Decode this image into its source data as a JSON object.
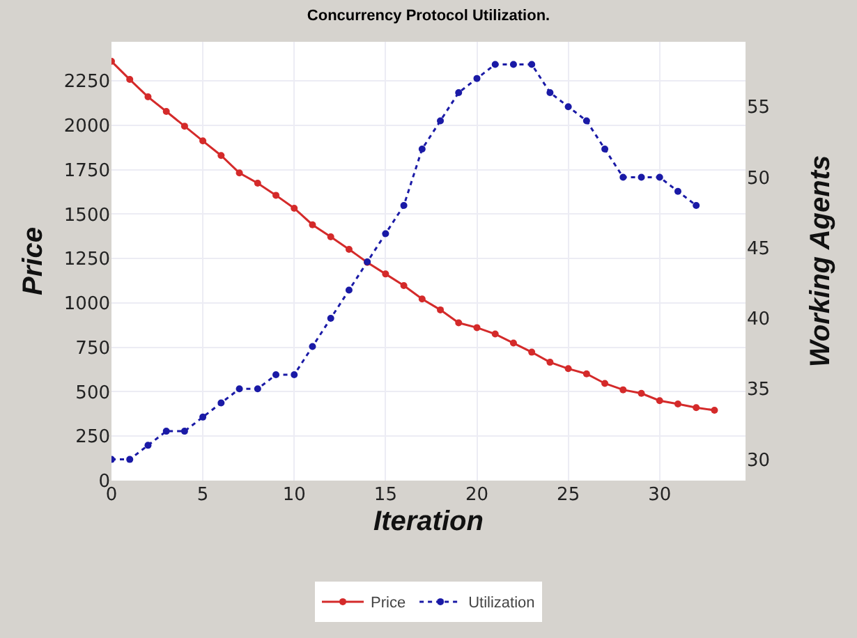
{
  "chart_data": {
    "type": "line",
    "title": "Concurrency Protocol Utilization.",
    "xlabel": "Iteration",
    "ylabel": "Price",
    "y2label": "Working Agents",
    "x": [
      0,
      1,
      2,
      3,
      4,
      5,
      6,
      7,
      8,
      9,
      10,
      11,
      12,
      13,
      14,
      15,
      16,
      17,
      18,
      19,
      20,
      21,
      22,
      23,
      24,
      25,
      26,
      27,
      28,
      29,
      30,
      31,
      32,
      33
    ],
    "series": [
      {
        "name": "Price",
        "color": "#d42a2a",
        "line_style": "solid",
        "marker": "circle",
        "values": [
          2360,
          2258,
          2160,
          2078,
          1995,
          1912,
          1830,
          1732,
          1674,
          1606,
          1533,
          1440,
          1372,
          1302,
          1228,
          1163,
          1098,
          1022,
          961,
          888,
          861,
          825,
          774,
          723,
          666,
          630,
          601,
          547,
          511,
          491,
          450,
          431,
          411,
          396
        ]
      },
      {
        "name": "Utilization",
        "color": "#1a1aa6",
        "line_style": "dotted",
        "marker": "circle",
        "axis": "y2",
        "x": [
          0,
          1,
          2,
          3,
          4,
          5,
          6,
          7,
          8,
          9,
          10,
          11,
          12,
          13,
          14,
          15,
          16,
          17,
          18,
          19,
          20,
          21,
          22,
          23,
          24,
          25,
          26,
          27,
          28,
          29,
          30,
          31,
          32
        ],
        "values": [
          30,
          30,
          31,
          32,
          32,
          33,
          34,
          35,
          35,
          36,
          36,
          38,
          40,
          42,
          44,
          46,
          48,
          52,
          54,
          56,
          57,
          58,
          58,
          58,
          56,
          55,
          54,
          52,
          50,
          50,
          50,
          49,
          48
        ]
      }
    ],
    "xlim": [
      0,
      34.7
    ],
    "xticks": [
      0,
      5,
      10,
      15,
      20,
      25,
      30
    ],
    "ylim": [
      0,
      2470
    ],
    "yticks": [
      0,
      250,
      500,
      750,
      1000,
      1250,
      1500,
      1750,
      2000,
      2250
    ],
    "y2lim": [
      28.5,
      59.6
    ],
    "y2ticks": [
      30,
      35,
      40,
      45,
      50,
      55
    ],
    "grid": true,
    "legend": "bottom"
  }
}
